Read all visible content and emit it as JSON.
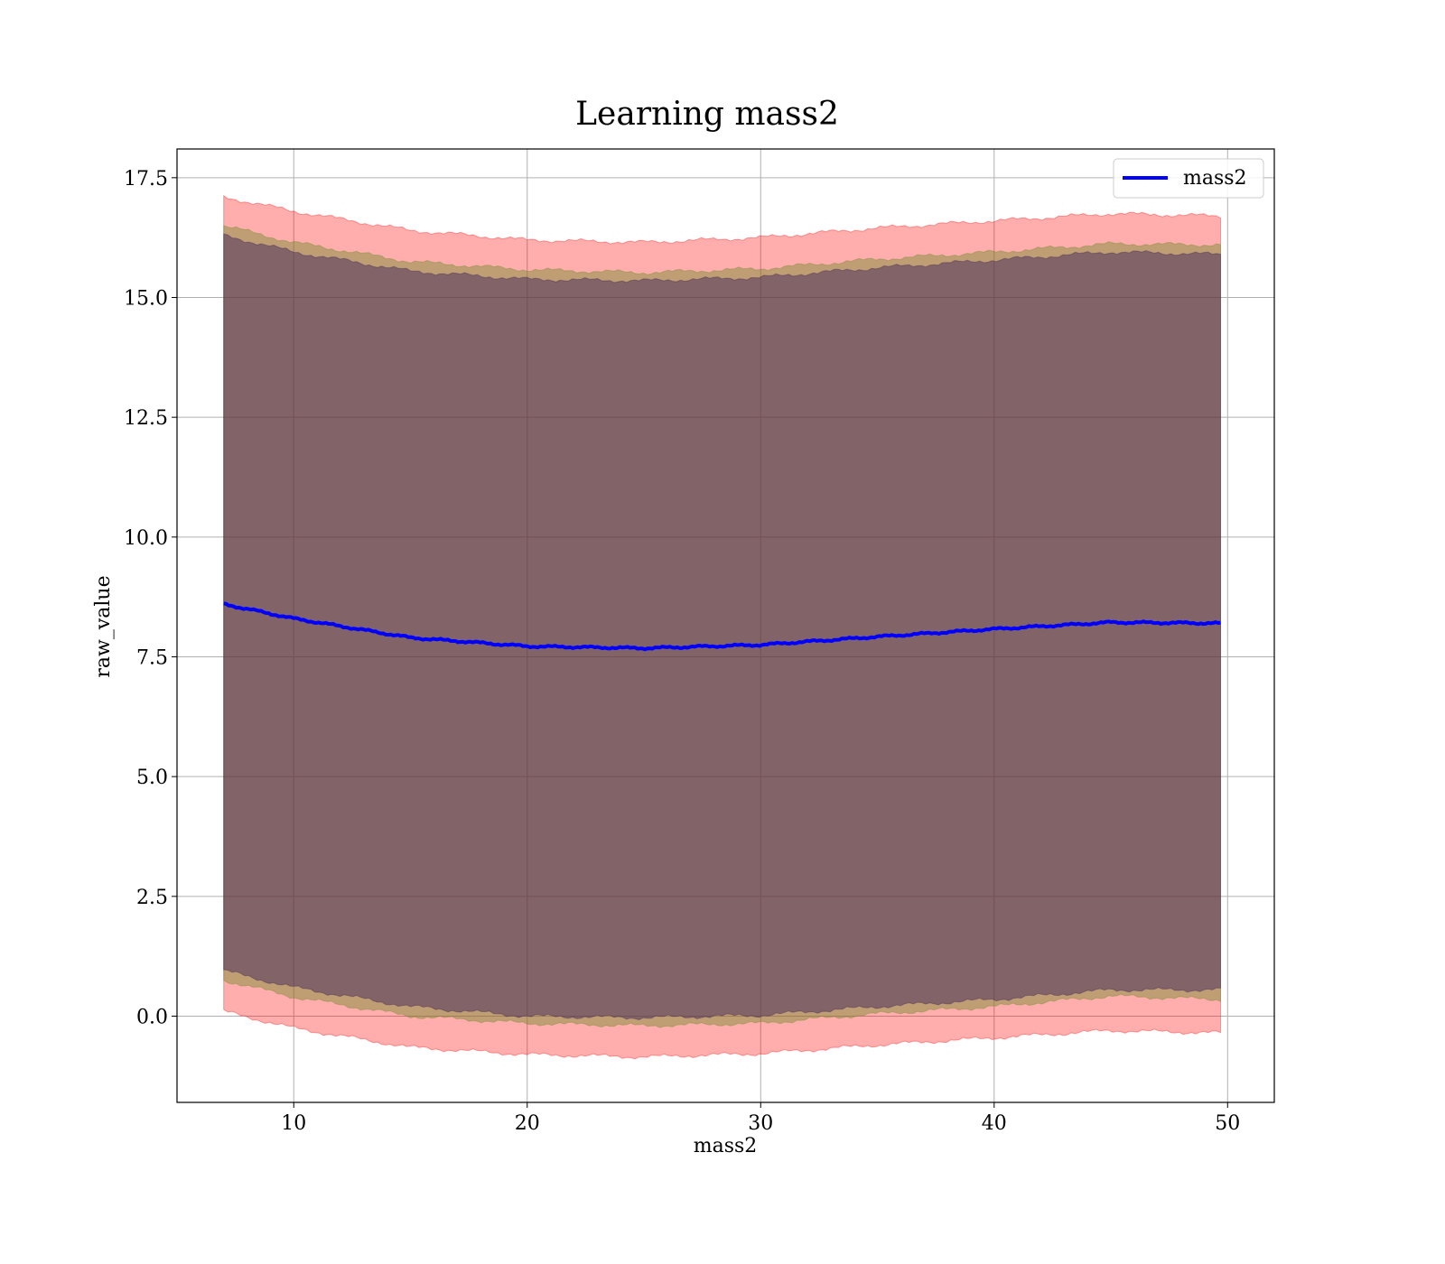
{
  "chart_data": {
    "type": "line",
    "title": "Learning mass2",
    "xlabel": "mass2",
    "ylabel": "raw_value",
    "xlim": [
      5.0,
      52.0
    ],
    "ylim": [
      -1.8,
      18.1
    ],
    "xticks": [
      10,
      20,
      30,
      40,
      50
    ],
    "xtick_labels": [
      "10",
      "20",
      "30",
      "40",
      "50"
    ],
    "yticks": [
      0.0,
      2.5,
      5.0,
      7.5,
      10.0,
      12.5,
      15.0,
      17.5
    ],
    "ytick_labels": [
      "0.0",
      "2.5",
      "5.0",
      "7.5",
      "10.0",
      "12.5",
      "15.0",
      "17.5"
    ],
    "grid": true,
    "legend_position": "top-right",
    "series": [
      {
        "name": "mass2",
        "color": "#0000ff",
        "x": [
          7.0,
          10.0,
          15.0,
          20.0,
          25.0,
          30.0,
          35.0,
          40.0,
          45.0,
          49.7
        ],
        "values": [
          8.6,
          8.3,
          7.9,
          7.72,
          7.68,
          7.75,
          7.92,
          8.08,
          8.22,
          8.2
        ]
      }
    ],
    "bands": [
      {
        "color": "#ff0000",
        "opacity": 0.32,
        "x": [
          7.0,
          10.0,
          15.0,
          20.0,
          25.0,
          30.0,
          35.0,
          40.0,
          45.0,
          49.7
        ],
        "upper": [
          17.1,
          16.8,
          16.4,
          16.2,
          16.15,
          16.25,
          16.45,
          16.6,
          16.75,
          16.7
        ],
        "lower": [
          0.1,
          -0.25,
          -0.65,
          -0.8,
          -0.85,
          -0.78,
          -0.6,
          -0.45,
          -0.3,
          -0.35
        ]
      },
      {
        "color": "#6e8c2a",
        "opacity": 0.45,
        "x": [
          7.0,
          10.0,
          15.0,
          20.0,
          25.0,
          30.0,
          35.0,
          40.0,
          45.0,
          49.7
        ],
        "upper": [
          16.5,
          16.15,
          15.75,
          15.58,
          15.52,
          15.6,
          15.8,
          15.95,
          16.12,
          16.1
        ],
        "lower": [
          0.75,
          0.4,
          0.0,
          -0.15,
          -0.2,
          -0.15,
          0.05,
          0.2,
          0.42,
          0.35
        ]
      },
      {
        "color": "#3a1a5a",
        "opacity": 0.45,
        "x": [
          7.0,
          10.0,
          15.0,
          20.0,
          25.0,
          30.0,
          35.0,
          40.0,
          45.0,
          49.7
        ],
        "upper": [
          16.3,
          15.95,
          15.55,
          15.38,
          15.35,
          15.42,
          15.62,
          15.78,
          15.95,
          15.9
        ],
        "lower": [
          0.95,
          0.6,
          0.2,
          0.0,
          -0.03,
          0.02,
          0.2,
          0.35,
          0.55,
          0.55
        ]
      }
    ]
  }
}
